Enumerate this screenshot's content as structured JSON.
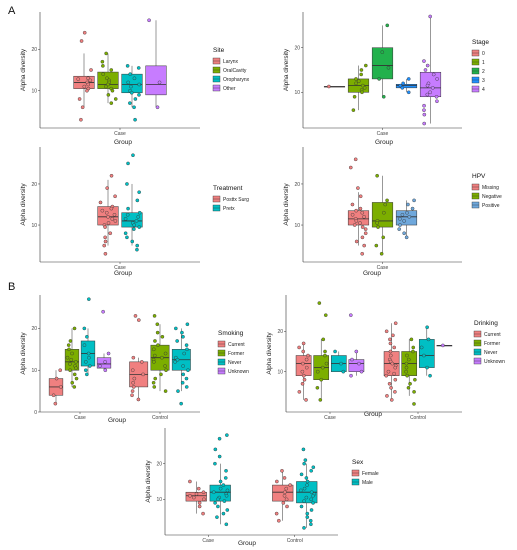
{
  "figure": {
    "panel_labels": [
      "A",
      "B"
    ],
    "colors": {
      "red": "#f08080",
      "green": "#7cae00",
      "teal": "#00bfc4",
      "violet": "#c77cff",
      "green2": "#22b14c",
      "blue2": "#1e90ff"
    }
  },
  "chart_data": [
    {
      "id": "A1",
      "type": "box",
      "panel": "A",
      "xlabel": "Group",
      "ylabel": "Alpha diversity",
      "categories": [
        "Case"
      ],
      "yticks": [
        10,
        20
      ],
      "ylim": [
        1,
        29
      ],
      "legend": {
        "title": "Site",
        "placement": "right"
      },
      "series": [
        {
          "name": "Larynx",
          "color": "#f08080",
          "q1": 10.5,
          "median": 12,
          "q3": 13.5,
          "min": 6,
          "max": 19,
          "points": [
            24,
            22,
            15,
            13,
            12.8,
            12.5,
            12,
            11.5,
            11,
            10.5,
            10,
            8,
            6,
            3
          ]
        },
        {
          "name": "OralCavity",
          "color": "#7cae00",
          "q1": 10.5,
          "median": 11.5,
          "q3": 14.5,
          "min": 7,
          "max": 19,
          "points": [
            19,
            17,
            16,
            15,
            14,
            13,
            12.5,
            12,
            11.5,
            11,
            10.5,
            10,
            9,
            8,
            7
          ]
        },
        {
          "name": "Oropharynx",
          "color": "#00bfc4",
          "q1": 9.5,
          "median": 11.5,
          "q3": 14,
          "min": 6,
          "max": 16,
          "points": [
            16,
            15.5,
            14,
            13,
            12,
            11.5,
            11,
            10,
            9.5,
            9,
            8,
            7,
            6,
            3
          ]
        },
        {
          "name": "Other",
          "color": "#c77cff",
          "q1": 9,
          "median": 11.5,
          "q3": 16,
          "min": 6,
          "max": 27,
          "points": [
            27,
            12,
            6
          ]
        }
      ]
    },
    {
      "id": "A2",
      "type": "box",
      "panel": "A",
      "xlabel": "Group",
      "ylabel": "Alpha diversity",
      "categories": [
        "Case"
      ],
      "yticks": [
        10,
        20
      ],
      "ylim": [
        2,
        28
      ],
      "legend": {
        "title": "Stage",
        "placement": "right"
      },
      "series": [
        {
          "name": "0",
          "color": "#f08080",
          "q1": 11.3,
          "median": 11.3,
          "q3": 11.3,
          "min": 11.3,
          "max": 11.3,
          "points": [
            11.3
          ]
        },
        {
          "name": "1",
          "color": "#7cae00",
          "q1": 10,
          "median": 11.5,
          "q3": 13,
          "min": 6,
          "max": 16,
          "points": [
            16,
            15,
            14,
            13,
            12.5,
            12,
            11.5,
            11,
            10.5,
            10,
            9,
            6
          ]
        },
        {
          "name": "2",
          "color": "#22b14c",
          "q1": 13,
          "median": 16,
          "q3": 20,
          "min": 9,
          "max": 25,
          "points": [
            25,
            19,
            15.5,
            13,
            9
          ]
        },
        {
          "name": "3",
          "color": "#1e90ff",
          "q1": 11,
          "median": 11.5,
          "q3": 11.8,
          "min": 10,
          "max": 13,
          "points": [
            13,
            12,
            11.5,
            11,
            10
          ]
        },
        {
          "name": "4",
          "color": "#c77cff",
          "q1": 9,
          "median": 11,
          "q3": 14.5,
          "min": 3,
          "max": 27,
          "points": [
            27,
            17,
            16,
            15,
            14,
            13,
            12,
            11.5,
            11,
            10,
            9.5,
            9,
            8,
            7,
            6,
            5,
            3
          ]
        }
      ]
    },
    {
      "id": "A3",
      "type": "box",
      "panel": "A",
      "xlabel": "Group",
      "ylabel": "Alpha diversity",
      "categories": [
        "Case"
      ],
      "yticks": [
        10,
        20
      ],
      "ylim": [
        1,
        29
      ],
      "legend": {
        "title": "Treatment",
        "placement": "right"
      },
      "series": [
        {
          "name": "Posttx Surg",
          "color": "#f08080",
          "q1": 10,
          "median": 12,
          "q3": 14.5,
          "min": 5,
          "max": 21,
          "points": [
            22,
            19,
            17,
            15.5,
            14.5,
            14,
            13.5,
            13,
            12.5,
            12,
            11.5,
            11,
            10.5,
            10,
            9.5,
            8,
            7,
            6,
            5,
            3
          ]
        },
        {
          "name": "Pretx",
          "color": "#00bfc4",
          "q1": 9.5,
          "median": 11,
          "q3": 13,
          "min": 5,
          "max": 20,
          "points": [
            27,
            25,
            20,
            18,
            16,
            14,
            13,
            12.5,
            12,
            11.5,
            11,
            10.5,
            10,
            9.5,
            9,
            8,
            7,
            6,
            5,
            4
          ]
        }
      ]
    },
    {
      "id": "A4",
      "type": "box",
      "panel": "A",
      "xlabel": "Group",
      "ylabel": "Alpha diversity",
      "categories": [
        "Case"
      ],
      "yticks": [
        10,
        20
      ],
      "ylim": [
        1,
        29
      ],
      "legend": {
        "title": "HPV",
        "placement": "right"
      },
      "series": [
        {
          "name": "Missing",
          "color": "#f08080",
          "q1": 10,
          "median": 11.5,
          "q3": 13.5,
          "min": 5,
          "max": 18,
          "points": [
            26,
            24,
            19,
            17,
            15,
            14,
            13.5,
            13,
            12.5,
            12,
            11.5,
            11,
            10.5,
            10,
            9.5,
            9,
            8,
            7,
            6,
            5,
            3
          ]
        },
        {
          "name": "Negative",
          "color": "#7cae00",
          "q1": 9.5,
          "median": 11,
          "q3": 15.5,
          "min": 3,
          "max": 22,
          "points": [
            22,
            16,
            15,
            13,
            11,
            10.5,
            9.5,
            7,
            5,
            3
          ]
        },
        {
          "name": "Positive",
          "color": "#6fa8dc",
          "q1": 10,
          "median": 12,
          "q3": 13.5,
          "min": 7,
          "max": 16,
          "points": [
            16,
            15,
            14,
            13,
            12.5,
            12,
            11.5,
            11,
            10,
            9,
            8,
            7
          ]
        }
      ]
    },
    {
      "id": "B1",
      "type": "box",
      "panel": "B",
      "xlabel": "Group",
      "ylabel": "Alpha diversity",
      "categories": [
        "Case",
        "Control"
      ],
      "yticks": [
        0,
        10,
        20
      ],
      "ylim": [
        0,
        28
      ],
      "legend": {
        "title": "Smoking",
        "placement": "right"
      },
      "groups": [
        {
          "category": "Case",
          "series": [
            {
              "name": "Current",
              "color": "#f08080",
              "q1": 4,
              "median": 6,
              "q3": 8,
              "min": 2,
              "max": 10,
              "points": [
                10,
                8,
                6,
                4,
                2
              ]
            },
            {
              "name": "Former",
              "color": "#7cae00",
              "q1": 10,
              "median": 12,
              "q3": 15,
              "min": 6,
              "max": 20,
              "points": [
                20,
                17,
                16,
                15,
                14,
                13,
                12.5,
                12,
                11.5,
                11,
                10.5,
                10,
                9,
                8,
                7,
                6
              ]
            },
            {
              "name": "Never",
              "color": "#00bfc4",
              "q1": 11,
              "median": 14,
              "q3": 17,
              "min": 9,
              "max": 20,
              "points": [
                27,
                20,
                18,
                16,
                14,
                13,
                12,
                11,
                10,
                9
              ]
            },
            {
              "name": "Unknown",
              "color": "#c77cff",
              "q1": 10.5,
              "median": 11.5,
              "q3": 13,
              "min": 10,
              "max": 14,
              "points": [
                24,
                14,
                12,
                11,
                10
              ]
            }
          ]
        },
        {
          "category": "Control",
          "series": [
            {
              "name": "Current",
              "color": "#f08080",
              "q1": 6,
              "median": 9,
              "q3": 12,
              "min": 3,
              "max": 13,
              "points": [
                23,
                22,
                13,
                12,
                10,
                9,
                8,
                7,
                6,
                5,
                4,
                3
              ]
            },
            {
              "name": "Former",
              "color": "#7cae00",
              "q1": 10,
              "median": 13,
              "q3": 16,
              "min": 5,
              "max": 21,
              "points": [
                23,
                21,
                19,
                18,
                17,
                16,
                15,
                14,
                13.5,
                13,
                12.5,
                12,
                11,
                10,
                9,
                8,
                7,
                6,
                5
              ]
            },
            {
              "name": "Never",
              "color": "#00bfc4",
              "q1": 10,
              "median": 12.5,
              "q3": 15,
              "min": 5,
              "max": 20,
              "points": [
                21,
                20,
                19,
                18,
                17,
                16,
                15,
                14,
                13,
                12.5,
                12,
                11,
                10,
                9,
                8,
                7,
                6,
                5,
                2
              ]
            }
          ]
        }
      ]
    },
    {
      "id": "B2",
      "type": "box",
      "panel": "B",
      "xlabel": "Group",
      "ylabel": "Alpha diversity",
      "categories": [
        "Case",
        "Control"
      ],
      "yticks": [
        10,
        20
      ],
      "ylim": [
        0,
        29
      ],
      "legend": {
        "title": "Drinking",
        "placement": "right"
      },
      "groups": [
        {
          "category": "Case",
          "series": [
            {
              "name": "Current",
              "color": "#f08080",
              "q1": 9,
              "median": 12,
              "q3": 14,
              "min": 3,
              "max": 17,
              "points": [
                17,
                16,
                15,
                14,
                13,
                12,
                11,
                10,
                9,
                8,
                7,
                5,
                3
              ]
            },
            {
              "name": "Former",
              "color": "#7cae00",
              "q1": 8,
              "median": 11,
              "q3": 14,
              "min": 3,
              "max": 18,
              "points": [
                27,
                24,
                18,
                15,
                14,
                12,
                11,
                10,
                8,
                6,
                3
              ]
            },
            {
              "name": "Never",
              "color": "#00bfc4",
              "q1": 10,
              "median": 12,
              "q3": 14,
              "min": 10,
              "max": 15,
              "points": [
                15,
                12,
                10
              ]
            },
            {
              "name": "Unknown",
              "color": "#c77cff",
              "q1": 10,
              "median": 12,
              "q3": 13,
              "min": 9,
              "max": 15,
              "points": [
                24,
                15,
                13,
                12,
                10,
                9
              ]
            }
          ]
        },
        {
          "category": "Control",
          "series": [
            {
              "name": "Current",
              "color": "#f08080",
              "q1": 9,
              "median": 12,
              "q3": 15,
              "min": 3,
              "max": 22,
              "points": [
                22,
                20,
                19,
                18,
                17,
                16,
                15,
                14,
                13,
                12.5,
                12,
                11.5,
                11,
                10,
                9.5,
                9,
                8,
                7,
                6,
                5,
                4,
                3
              ]
            },
            {
              "name": "Former",
              "color": "#7cae00",
              "q1": 9,
              "median": 12,
              "q3": 15,
              "min": 4,
              "max": 18,
              "points": [
                18,
                16,
                15,
                14,
                13,
                12,
                11,
                10,
                9,
                8,
                7,
                6,
                5,
                2
              ]
            },
            {
              "name": "Never",
              "color": "#00bfc4",
              "q1": 11,
              "median": 14,
              "q3": 18,
              "min": 9,
              "max": 21,
              "points": [
                21,
                18,
                16,
                14,
                11,
                9
              ]
            },
            {
              "name": "Unknown",
              "color": "#c77cff",
              "q1": 16.5,
              "median": 16.5,
              "q3": 16.5,
              "min": 16.5,
              "max": 16.5,
              "points": [
                16.5
              ]
            }
          ]
        }
      ]
    },
    {
      "id": "B3",
      "type": "box",
      "panel": "B",
      "xlabel": "Group",
      "ylabel": "Alpha diversity",
      "categories": [
        "Case",
        "Control"
      ],
      "yticks": [
        10,
        20
      ],
      "ylim": [
        0,
        30
      ],
      "legend": {
        "title": "Sex",
        "placement": "right"
      },
      "groups": [
        {
          "category": "Case",
          "series": [
            {
              "name": "Female",
              "color": "#f08080",
              "q1": 9.5,
              "median": 11,
              "q3": 12,
              "min": 6,
              "max": 15,
              "points": [
                15,
                13,
                12,
                11.5,
                11,
                10.5,
                10,
                9,
                8,
                6
              ]
            },
            {
              "name": "Male",
              "color": "#00bfc4",
              "q1": 9.5,
              "median": 12,
              "q3": 14,
              "min": 3,
              "max": 20,
              "points": [
                28,
                27,
                24,
                22,
                20,
                18,
                16,
                15,
                14,
                13,
                12.5,
                12,
                11.5,
                11,
                10.5,
                10,
                9.5,
                9,
                8,
                7,
                6,
                5,
                3
              ]
            }
          ]
        },
        {
          "category": "Control",
          "series": [
            {
              "name": "Female",
              "color": "#f08080",
              "q1": 9.5,
              "median": 12,
              "q3": 14,
              "min": 4,
              "max": 18,
              "points": [
                18,
                16,
                15,
                14,
                13,
                12,
                11,
                10,
                9,
                8,
                6,
                4
              ]
            },
            {
              "name": "Male",
              "color": "#00bfc4",
              "q1": 9,
              "median": 12,
              "q3": 15,
              "min": 2,
              "max": 20,
              "points": [
                24,
                21,
                20,
                19,
                18,
                17,
                16,
                15,
                14,
                13,
                12.5,
                12,
                11.5,
                11,
                10.5,
                10,
                9.5,
                9,
                8,
                7,
                6,
                5,
                4,
                3,
                2
              ]
            }
          ]
        }
      ]
    }
  ]
}
